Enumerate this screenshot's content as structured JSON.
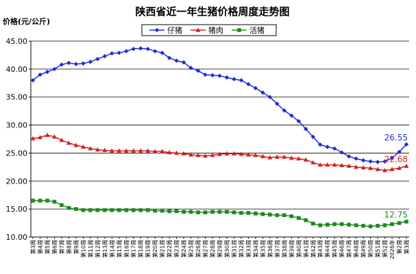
{
  "chart_data": {
    "type": "line",
    "title": "陕西省近一年生猪价格周度走势图",
    "ylabel": "价格(元/公斤)",
    "xlabel": "",
    "ylim": [
      10,
      45
    ],
    "yticks": [
      "10.00",
      "15.00",
      "20.00",
      "25.00",
      "30.00",
      "35.00",
      "40.00",
      "45.00"
    ],
    "grid": "horizontal",
    "legend_position": "top",
    "categories": [
      "第3周",
      "第4周",
      "第5周",
      "第6周",
      "第7周",
      "第8周",
      "第9周",
      "第10周",
      "第11周",
      "第12周",
      "第13周",
      "第14周",
      "第15周",
      "第16周",
      "第17周",
      "第18周",
      "第19周",
      "第20周",
      "第21周",
      "第22周",
      "第23周",
      "第24周",
      "第25周",
      "第26周",
      "第27周",
      "第28周",
      "第29周",
      "第30周",
      "第31周",
      "第32周",
      "第33周",
      "第34周",
      "第35周",
      "第36周",
      "第37周",
      "第38周",
      "第39周",
      "第40周",
      "第41周",
      "第42周",
      "第43周",
      "第44周",
      "第45周",
      "第46周",
      "第47周",
      "第48周",
      "第49周",
      "第50周",
      "第51周",
      "第52周",
      "2026年",
      "第2周",
      "第3周"
    ],
    "series": [
      {
        "name": "仔猪",
        "color": "#1f2bd6",
        "marker": "diamond",
        "values": [
          38.0,
          39.0,
          39.5,
          40.0,
          40.8,
          41.1,
          40.9,
          41.0,
          41.3,
          41.8,
          42.3,
          42.8,
          42.9,
          43.2,
          43.6,
          43.7,
          43.6,
          43.2,
          42.9,
          42.0,
          41.5,
          41.2,
          40.2,
          39.7,
          39.0,
          38.9,
          38.8,
          38.5,
          38.2,
          38.0,
          37.3,
          36.6,
          35.8,
          35.0,
          33.8,
          32.6,
          31.7,
          30.7,
          29.3,
          27.9,
          26.5,
          26.1,
          25.8,
          25.1,
          24.4,
          24.0,
          23.7,
          23.5,
          23.4,
          23.5,
          24.1,
          25.2,
          26.55
        ],
        "end_label": "26.55"
      },
      {
        "name": "猪肉",
        "color": "#d61f1f",
        "marker": "triangle",
        "values": [
          27.6,
          27.8,
          28.2,
          27.9,
          27.3,
          26.8,
          26.4,
          26.1,
          25.8,
          25.6,
          25.5,
          25.4,
          25.4,
          25.4,
          25.4,
          25.4,
          25.4,
          25.3,
          25.3,
          25.1,
          25.0,
          24.9,
          24.7,
          24.6,
          24.5,
          24.6,
          24.8,
          24.9,
          24.9,
          24.8,
          24.7,
          24.6,
          24.4,
          24.2,
          24.3,
          24.3,
          24.1,
          24.0,
          23.8,
          23.3,
          22.9,
          22.9,
          22.9,
          22.8,
          22.7,
          22.5,
          22.4,
          22.3,
          22.1,
          21.9,
          22.1,
          22.3,
          22.68
        ],
        "end_label": "22.68"
      },
      {
        "name": "活猪",
        "color": "#1f8a1f",
        "marker": "square",
        "values": [
          16.5,
          16.5,
          16.5,
          16.3,
          15.7,
          15.2,
          15.0,
          14.8,
          14.8,
          14.8,
          14.8,
          14.8,
          14.8,
          14.8,
          14.8,
          14.8,
          14.8,
          14.7,
          14.7,
          14.6,
          14.6,
          14.5,
          14.5,
          14.4,
          14.4,
          14.5,
          14.5,
          14.5,
          14.4,
          14.3,
          14.3,
          14.2,
          14.1,
          14.0,
          13.9,
          13.9,
          13.7,
          13.4,
          13.0,
          12.4,
          12.1,
          12.2,
          12.3,
          12.3,
          12.2,
          12.1,
          12.0,
          11.9,
          12.0,
          12.1,
          12.3,
          12.5,
          12.75
        ],
        "end_label": "12.75"
      }
    ]
  }
}
